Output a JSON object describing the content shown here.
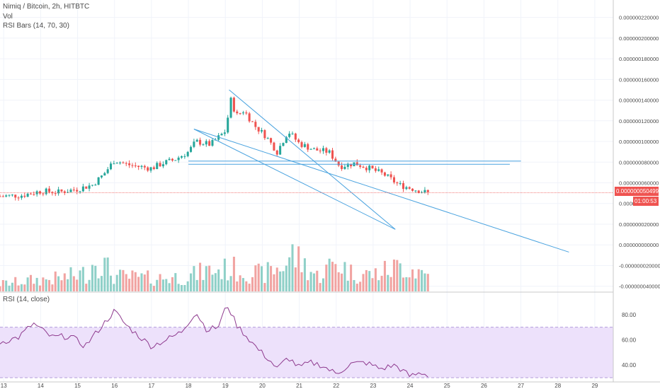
{
  "legend": {
    "title": "Nimiq / Bitcoin, 2h, HITBTC",
    "vol": "Vol",
    "rsi_bars": "RSI Bars (14, 70, 30)"
  },
  "rsi_panel": {
    "label": "RSI (14, close)"
  },
  "price_axis": {
    "ticks": [
      "0.000000220000",
      "0.000000200000",
      "0.000000180000",
      "0.000000160000",
      "0.000000140000",
      "0.000000120000",
      "0.000000100000",
      "0.000000080000",
      "0.000000060000",
      "0.000000040000",
      "0.000000020000",
      "0.000000000000",
      "-0.000000020000",
      "-0.000000040000"
    ],
    "current_price": "0.000000050499",
    "countdown": "01:00:53"
  },
  "rsi_axis": {
    "ticks": [
      "80.00",
      "60.00",
      "40.00"
    ],
    "upper": 70,
    "lower": 30
  },
  "time_axis": {
    "ticks": [
      "13",
      "14",
      "15",
      "16",
      "17",
      "18",
      "19",
      "20",
      "21",
      "22",
      "23",
      "24",
      "25",
      "26",
      "27",
      "28",
      "29"
    ]
  },
  "colors": {
    "up": "#26a69a",
    "down": "#ef5350",
    "up_vol": "#8fd0c8",
    "down_vol": "#f1a3a1",
    "trendline": "#4aa3df",
    "rsi_line": "#8e3a8e",
    "rsi_band": "#ede1fb",
    "price_line": "#ef5350"
  },
  "chart_data": {
    "type": "candlestick",
    "interval": "2h",
    "x_range_days": [
      12.9,
      29.5
    ],
    "price_range": [
      -4.5e-08,
      2.3e-07
    ],
    "candle_anchors": [
      [
        12.9,
        4.7e-08
      ],
      [
        13.5,
        4.8e-08
      ],
      [
        14.0,
        5.2e-08
      ],
      [
        14.5,
        5.1e-08
      ],
      [
        15.0,
        5.4e-08
      ],
      [
        15.4,
        5.8e-08
      ],
      [
        15.7,
        6.8e-08
      ],
      [
        16.0,
        8.2e-08
      ],
      [
        16.3,
        7.8e-08
      ],
      [
        16.6,
        7.6e-08
      ],
      [
        17.0,
        7.4e-08
      ],
      [
        17.3,
        7.9e-08
      ],
      [
        17.6,
        8.2e-08
      ],
      [
        18.0,
        9e-08
      ],
      [
        18.2,
        1e-07
      ],
      [
        18.6,
        9.7e-08
      ],
      [
        19.0,
        1.1e-07
      ],
      [
        19.15,
        1.4e-07
      ],
      [
        19.3,
        1.25e-07
      ],
      [
        19.5,
        1.3e-07
      ],
      [
        19.8,
        1.15e-07
      ],
      [
        20.1,
        1.05e-07
      ],
      [
        20.4,
        9e-08
      ],
      [
        20.7,
        1.1e-07
      ],
      [
        21.0,
        9.8e-08
      ],
      [
        21.4,
        9.2e-08
      ],
      [
        21.8,
        9e-08
      ],
      [
        22.1,
        7.6e-08
      ],
      [
        22.5,
        7.9e-08
      ],
      [
        22.9,
        7.4e-08
      ],
      [
        23.3,
        6.8e-08
      ],
      [
        23.7,
        5.8e-08
      ],
      [
        24.1,
        5.4e-08
      ],
      [
        24.5,
        5e-08
      ]
    ],
    "volume_anchors": [
      [
        12.9,
        0.2
      ],
      [
        13.8,
        0.3
      ],
      [
        14.5,
        0.35
      ],
      [
        15.3,
        0.5
      ],
      [
        15.5,
        0.95
      ],
      [
        16.0,
        0.4
      ],
      [
        17.0,
        0.35
      ],
      [
        18.0,
        0.4
      ],
      [
        18.5,
        0.55
      ],
      [
        19.2,
        0.6
      ],
      [
        20.0,
        0.45
      ],
      [
        20.6,
        0.7
      ],
      [
        20.8,
        1.0
      ],
      [
        21.5,
        0.4
      ],
      [
        22.0,
        0.8
      ],
      [
        22.4,
        0.5
      ],
      [
        23.0,
        0.45
      ],
      [
        23.5,
        0.6
      ],
      [
        23.8,
        0.7
      ],
      [
        24.2,
        0.55
      ],
      [
        24.5,
        0.45
      ]
    ],
    "rsi_anchors": [
      [
        12.9,
        58
      ],
      [
        13.4,
        62
      ],
      [
        13.8,
        73
      ],
      [
        14.3,
        62
      ],
      [
        14.8,
        63
      ],
      [
        15.2,
        55
      ],
      [
        15.6,
        69
      ],
      [
        16.0,
        83
      ],
      [
        16.3,
        72
      ],
      [
        16.7,
        62
      ],
      [
        17.0,
        55
      ],
      [
        17.4,
        60
      ],
      [
        17.8,
        66
      ],
      [
        18.2,
        82
      ],
      [
        18.5,
        68
      ],
      [
        18.8,
        70
      ],
      [
        19.05,
        88
      ],
      [
        19.3,
        72
      ],
      [
        19.6,
        62
      ],
      [
        19.9,
        52
      ],
      [
        20.2,
        44
      ],
      [
        20.4,
        37
      ],
      [
        20.7,
        46
      ],
      [
        21.0,
        38
      ],
      [
        21.3,
        42
      ],
      [
        21.6,
        40
      ],
      [
        22.0,
        33
      ],
      [
        22.4,
        41
      ],
      [
        22.8,
        42
      ],
      [
        23.2,
        37
      ],
      [
        23.6,
        40
      ],
      [
        24.0,
        31
      ],
      [
        24.3,
        34
      ],
      [
        24.5,
        32
      ]
    ],
    "rsi_range": [
      30,
      90
    ],
    "trendlines": [
      {
        "from": [
          19.1,
          1.5e-07
        ],
        "to": [
          23.6,
          1.5e-08
        ]
      },
      {
        "from": [
          18.15,
          1.12e-07
        ],
        "to": [
          23.6,
          1.5e-08
        ]
      },
      {
        "from": [
          18.15,
          1.12e-07
        ],
        "to": [
          28.3,
          -7e-09
        ]
      },
      {
        "from": [
          18.0,
          8.1e-08
        ],
        "to": [
          27.0,
          8.1e-08
        ]
      },
      {
        "from": [
          18.0,
          7.8e-08
        ],
        "to": [
          26.7,
          7.8e-08
        ]
      }
    ]
  }
}
